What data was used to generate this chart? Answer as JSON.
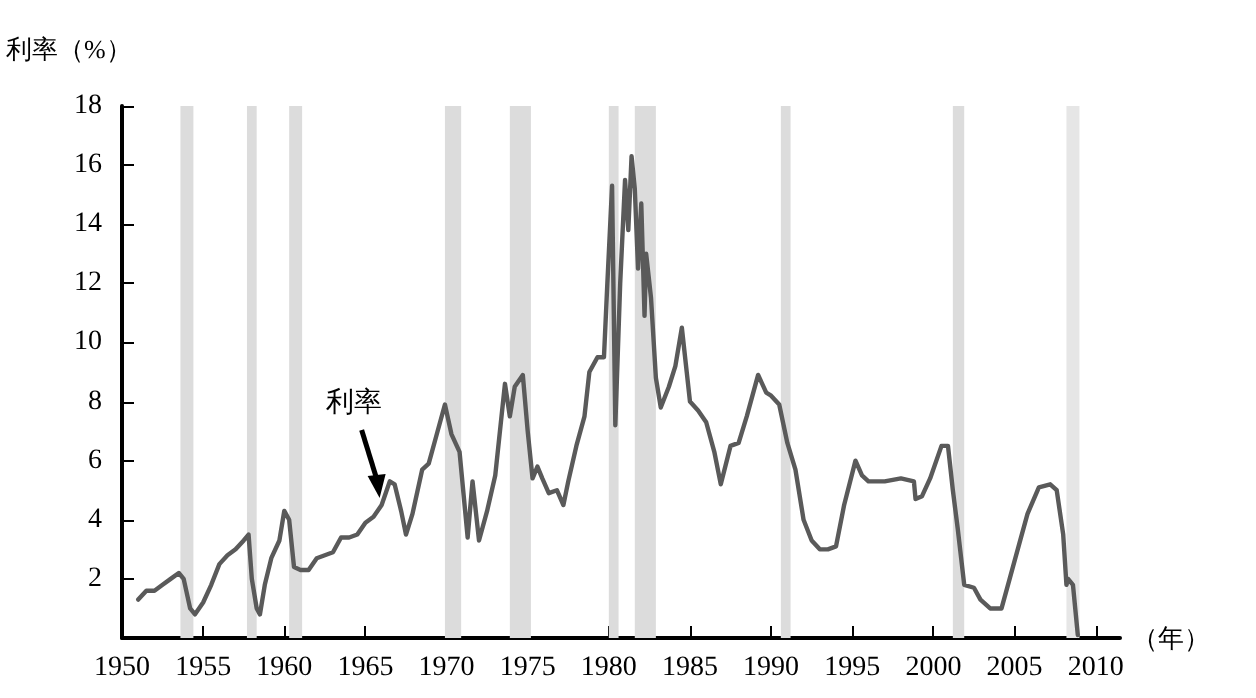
{
  "chart_data": {
    "type": "line",
    "ylabel": "利率（%）",
    "xlabel": "（年）",
    "annotations": [
      {
        "text": "利率",
        "x": 1966,
        "y": 4.6
      }
    ],
    "series": [
      {
        "color": "#5a5a5a",
        "x": [
          1951.0,
          1951.5,
          1952.0,
          1952.5,
          1953.0,
          1953.5,
          1953.8,
          1954.2,
          1954.5,
          1955.0,
          1955.5,
          1956.0,
          1956.5,
          1957.0,
          1957.5,
          1957.8,
          1958.0,
          1958.3,
          1958.5,
          1958.8,
          1959.2,
          1959.7,
          1960.0,
          1960.3,
          1960.6,
          1961.0,
          1961.5,
          1962.0,
          1962.5,
          1963.0,
          1963.5,
          1964.0,
          1964.5,
          1965.0,
          1965.5,
          1966.0,
          1966.5,
          1966.8,
          1967.2,
          1967.5,
          1967.9,
          1968.5,
          1968.9,
          1969.3,
          1969.9,
          1970.3,
          1970.8,
          1971.3,
          1971.6,
          1972.0,
          1972.5,
          1973.0,
          1973.6,
          1973.9,
          1974.2,
          1974.7,
          1975.0,
          1975.3,
          1975.6,
          1975.9,
          1976.3,
          1976.8,
          1977.2,
          1977.5,
          1978.0,
          1978.5,
          1978.8,
          1979.3,
          1979.7,
          1979.9,
          1980.2,
          1980.4,
          1980.7,
          1981.0,
          1981.2,
          1981.4,
          1981.6,
          1981.8,
          1982.0,
          1982.2,
          1982.3,
          1982.6,
          1982.9,
          1983.2,
          1983.7,
          1984.1,
          1984.5,
          1984.8,
          1985.0,
          1985.5,
          1986.0,
          1986.5,
          1986.9,
          1987.5,
          1988.0,
          1988.5,
          1989.2,
          1989.7,
          1990.0,
          1990.5,
          1991.0,
          1991.5,
          1992.0,
          1992.5,
          1993.0,
          1993.5,
          1994.0,
          1994.5,
          1995.2,
          1995.6,
          1996.0,
          1997.0,
          1998.0,
          1998.8,
          1998.9,
          1999.3,
          1999.8,
          2000.5,
          2000.9,
          2001.2,
          2001.5,
          2001.9,
          2002.5,
          2002.9,
          2003.5,
          2004.2,
          2004.7,
          2005.3,
          2005.8,
          2006.5,
          2007.2,
          2007.6,
          2008.0,
          2008.2,
          2008.3,
          2008.6,
          2008.9
        ],
        "values": [
          1.3,
          1.6,
          1.6,
          1.8,
          2.0,
          2.2,
          2.0,
          1.0,
          0.8,
          1.2,
          1.8,
          2.5,
          2.8,
          3.0,
          3.3,
          3.5,
          2.0,
          1.0,
          0.8,
          1.8,
          2.7,
          3.3,
          4.3,
          4.0,
          2.4,
          2.3,
          2.3,
          2.7,
          2.8,
          2.9,
          3.4,
          3.4,
          3.5,
          3.9,
          4.1,
          4.5,
          5.3,
          5.2,
          4.3,
          3.5,
          4.2,
          5.7,
          5.9,
          6.7,
          7.9,
          6.9,
          6.3,
          3.4,
          5.3,
          3.3,
          4.3,
          5.5,
          8.6,
          7.5,
          8.5,
          8.9,
          7.0,
          5.4,
          5.8,
          5.4,
          4.9,
          5.0,
          4.5,
          5.3,
          6.5,
          7.5,
          9.0,
          9.5,
          9.5,
          11.9,
          15.3,
          7.2,
          12.0,
          15.5,
          13.8,
          16.3,
          15.2,
          12.5,
          14.7,
          10.9,
          13.0,
          11.5,
          8.8,
          7.8,
          8.5,
          9.2,
          10.5,
          9.0,
          8.0,
          7.7,
          7.3,
          6.3,
          5.2,
          6.5,
          6.6,
          7.5,
          8.9,
          8.3,
          8.2,
          7.9,
          6.6,
          5.7,
          4.0,
          3.3,
          3.0,
          3.0,
          3.1,
          4.5,
          6.0,
          5.5,
          5.3,
          5.3,
          5.4,
          5.3,
          4.7,
          4.8,
          5.4,
          6.5,
          6.5,
          5.0,
          3.7,
          1.8,
          1.7,
          1.3,
          1.0,
          1.0,
          2.0,
          3.2,
          4.2,
          5.1,
          5.2,
          5.0,
          3.5,
          1.8,
          2.0,
          1.8,
          0.1
        ]
      }
    ],
    "xlim": [
      1950,
      2011.5
    ],
    "xticks": [
      1950,
      1955,
      1960,
      1965,
      1970,
      1975,
      1980,
      1985,
      1990,
      1995,
      2000,
      2005,
      2010
    ],
    "ylim": [
      0,
      18
    ],
    "yticks": [
      2,
      4,
      6,
      8,
      10,
      12,
      14,
      16,
      18
    ],
    "grid": false,
    "marker": "none",
    "line_style": "solid",
    "bands": [
      {
        "axis": "x",
        "from": 1953.6,
        "to": 1954.4,
        "color": "#dcdcdc"
      },
      {
        "axis": "x",
        "from": 1957.7,
        "to": 1958.3,
        "color": "#dcdcdc"
      },
      {
        "axis": "x",
        "from": 1960.3,
        "to": 1961.1,
        "color": "#dcdcdc"
      },
      {
        "axis": "x",
        "from": 1969.9,
        "to": 1970.9,
        "color": "#dcdcdc"
      },
      {
        "axis": "x",
        "from": 1973.9,
        "to": 1975.2,
        "color": "#dcdcdc"
      },
      {
        "axis": "x",
        "from": 1980.0,
        "to": 1980.6,
        "color": "#dcdcdc"
      },
      {
        "axis": "x",
        "from": 1981.6,
        "to": 1982.9,
        "color": "#dcdcdc"
      },
      {
        "axis": "x",
        "from": 1990.6,
        "to": 1991.2,
        "color": "#dcdcdc"
      },
      {
        "axis": "x",
        "from": 2001.2,
        "to": 2001.9,
        "color": "#dcdcdc"
      },
      {
        "axis": "x",
        "from": 2008.2,
        "to": 2009.0,
        "color": "#e6e6e6"
      }
    ]
  }
}
